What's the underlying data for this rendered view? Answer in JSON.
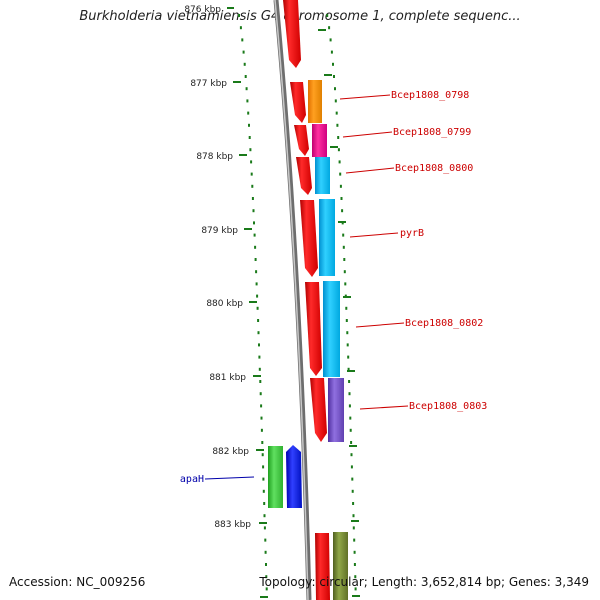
{
  "title": "Burkholderia vietnamiensis G4 chromosome 1, complete sequenc...",
  "footer": {
    "accession": "Accession: NC_009256",
    "topology": "Topology: circular; Length: 3,652,814 bp; Genes: 3,349"
  },
  "ticks": [
    "876 kbp",
    "877 kbp",
    "878 kbp",
    "879 kbp",
    "880 kbp",
    "881 kbp",
    "882 kbp",
    "883 kbp"
  ],
  "labels": [
    {
      "text": "Bcep1808_0798",
      "color": "#cc0000"
    },
    {
      "text": "Bcep1808_0799",
      "color": "#cc0000"
    },
    {
      "text": "Bcep1808_0800",
      "color": "#cc0000"
    },
    {
      "text": "pyrB",
      "color": "#cc0000"
    },
    {
      "text": "Bcep1808_0802",
      "color": "#cc0000"
    },
    {
      "text": "Bcep1808_0803",
      "color": "#cc0000"
    },
    {
      "text": "apaH",
      "color": "#0000aa"
    }
  ],
  "colors": {
    "backbone": "#8a8a8a",
    "cds": "#ff0000",
    "dots": "#1a7a1a"
  }
}
